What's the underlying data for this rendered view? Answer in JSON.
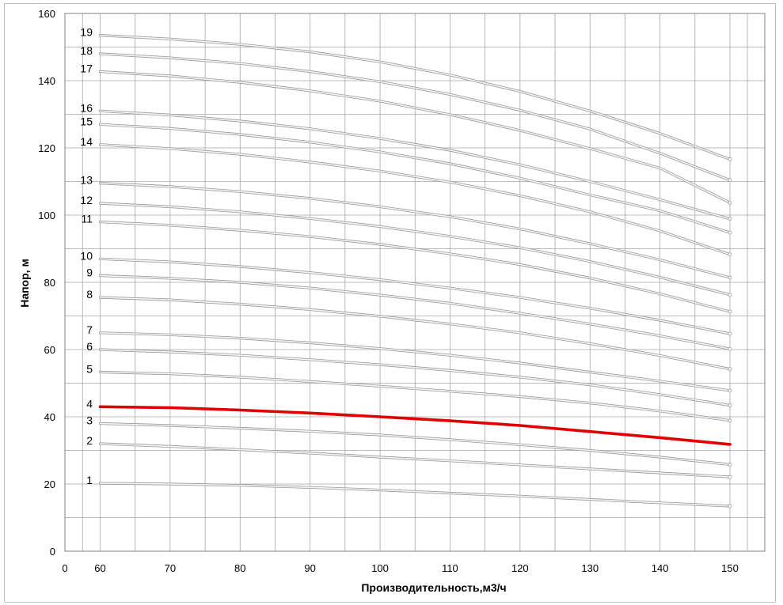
{
  "chart_data": {
    "type": "line",
    "title": "",
    "xlabel": "Производительность,м3/ч",
    "ylabel": "Напор, м",
    "xlim": [
      0,
      150
    ],
    "ylim": [
      0,
      160
    ],
    "x_ticks": [
      0,
      60,
      70,
      80,
      90,
      100,
      110,
      120,
      130,
      140,
      150
    ],
    "y_ticks": [
      0,
      20,
      40,
      60,
      80,
      100,
      120,
      140,
      160
    ],
    "grid": true,
    "legend": "none",
    "colors": {
      "curve": "#c8c8c8",
      "highlight": "#e00000",
      "grid": "#a6a6a6",
      "axis": "#808080"
    },
    "x": [
      60,
      70,
      80,
      90,
      100,
      110,
      120,
      130,
      140,
      150
    ],
    "series": [
      {
        "name": "1",
        "values": [
          20.2,
          20.0,
          19.6,
          19.0,
          18.2,
          17.3,
          16.4,
          15.4,
          14.4,
          13.4
        ]
      },
      {
        "name": "2",
        "values": [
          32.0,
          31.2,
          30.2,
          29.2,
          28.0,
          26.9,
          25.7,
          24.5,
          23.3,
          22.1
        ]
      },
      {
        "name": "3",
        "values": [
          38.0,
          37.4,
          36.6,
          35.7,
          34.6,
          33.2,
          31.7,
          30.0,
          28.0,
          25.8
        ]
      },
      {
        "name": "4",
        "values": [
          43.0,
          42.7,
          42.0,
          41.1,
          40.0,
          38.8,
          37.4,
          35.6,
          33.8,
          31.8
        ],
        "highlight": true
      },
      {
        "name": "5",
        "values": [
          53.3,
          52.8,
          51.8,
          50.5,
          49.1,
          47.6,
          46.0,
          44.1,
          41.7,
          38.9
        ]
      },
      {
        "name": "6",
        "values": [
          60.0,
          59.3,
          58.3,
          57.0,
          55.5,
          53.8,
          51.8,
          49.5,
          46.6,
          43.4
        ]
      },
      {
        "name": "7",
        "values": [
          65.0,
          64.4,
          63.4,
          62.0,
          60.3,
          58.3,
          56.0,
          53.3,
          50.6,
          47.8
        ]
      },
      {
        "name": "8",
        "values": [
          75.5,
          74.8,
          73.5,
          71.9,
          69.9,
          67.6,
          65.0,
          61.8,
          58.2,
          54.2
        ]
      },
      {
        "name": "9",
        "values": [
          82.0,
          81.2,
          80.0,
          78.3,
          76.2,
          73.8,
          70.8,
          67.6,
          64.1,
          60.2
        ]
      },
      {
        "name": "10",
        "values": [
          87.0,
          86.1,
          84.7,
          82.9,
          80.8,
          78.3,
          75.5,
          72.3,
          68.7,
          64.7
        ]
      },
      {
        "name": "11",
        "values": [
          98.0,
          97.0,
          95.5,
          93.6,
          91.3,
          88.5,
          85.3,
          81.3,
          76.6,
          71.3
        ]
      },
      {
        "name": "12",
        "values": [
          103.5,
          102.5,
          101.0,
          99.0,
          96.6,
          93.7,
          90.3,
          86.2,
          81.5,
          76.3
        ]
      },
      {
        "name": "13",
        "values": [
          109.5,
          108.5,
          107.0,
          105.0,
          102.5,
          99.5,
          95.9,
          91.5,
          86.7,
          81.4
        ]
      },
      {
        "name": "14",
        "values": [
          121.0,
          119.8,
          118.1,
          115.8,
          113.1,
          109.8,
          105.8,
          101.0,
          95.3,
          88.3
        ]
      },
      {
        "name": "15",
        "values": [
          127.0,
          125.8,
          124.0,
          121.7,
          118.8,
          115.3,
          111.0,
          106.0,
          101.3,
          94.8
        ]
      },
      {
        "name": "16",
        "values": [
          131.0,
          129.8,
          128.0,
          125.7,
          122.8,
          119.3,
          115.0,
          110.0,
          104.6,
          98.9
        ]
      },
      {
        "name": "17",
        "values": [
          142.7,
          141.4,
          139.5,
          137.0,
          133.9,
          129.9,
          125.2,
          119.8,
          114.0,
          103.7
        ]
      },
      {
        "name": "18",
        "values": [
          148.0,
          146.8,
          145.1,
          142.7,
          139.7,
          135.9,
          131.2,
          125.6,
          118.4,
          110.4
        ]
      },
      {
        "name": "19",
        "values": [
          153.5,
          152.4,
          150.8,
          148.6,
          145.6,
          141.7,
          136.8,
          131.0,
          124.3,
          116.6
        ]
      }
    ]
  }
}
